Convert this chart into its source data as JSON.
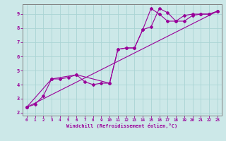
{
  "xlabel": "Windchill (Refroidissement éolien,°C)",
  "bg_color": "#cce8e8",
  "line_color": "#990099",
  "grid_color": "#aad4d4",
  "spine_color": "#808080",
  "xlim": [
    -0.5,
    23.5
  ],
  "ylim": [
    1.8,
    9.7
  ],
  "yticks": [
    2,
    3,
    4,
    5,
    6,
    7,
    8,
    9
  ],
  "xticks": [
    0,
    1,
    2,
    3,
    4,
    5,
    6,
    7,
    8,
    9,
    10,
    11,
    12,
    13,
    14,
    15,
    16,
    17,
    18,
    19,
    20,
    21,
    22,
    23
  ],
  "series1_x": [
    0,
    1,
    2,
    3,
    4,
    5,
    6,
    7,
    8,
    9,
    10,
    11,
    12,
    13,
    14,
    15,
    16,
    17,
    18,
    19,
    20,
    21,
    22,
    23
  ],
  "series1_y": [
    2.4,
    2.6,
    3.2,
    4.4,
    4.4,
    4.5,
    4.7,
    4.2,
    4.0,
    4.1,
    4.1,
    6.5,
    6.6,
    6.6,
    7.9,
    8.1,
    9.4,
    9.1,
    8.5,
    8.5,
    8.9,
    9.0,
    9.0,
    9.2
  ],
  "series2_x": [
    0,
    3,
    6,
    10,
    11,
    12,
    13,
    14,
    15,
    16,
    17,
    18,
    19,
    20,
    21,
    22,
    23
  ],
  "series2_y": [
    2.4,
    4.4,
    4.7,
    4.1,
    6.5,
    6.6,
    6.6,
    7.9,
    9.4,
    9.0,
    8.5,
    8.5,
    8.9,
    9.0,
    9.0,
    9.0,
    9.2
  ],
  "series3_x": [
    0,
    23
  ],
  "series3_y": [
    2.4,
    9.2
  ]
}
